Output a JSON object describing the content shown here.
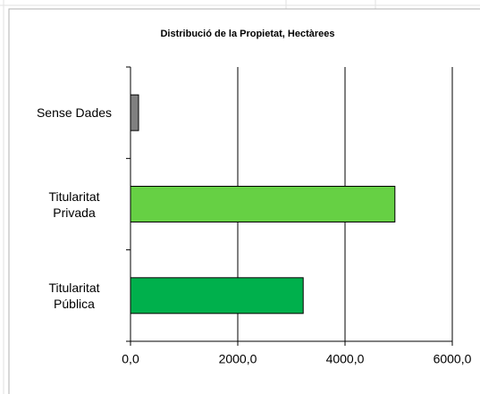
{
  "chart_data": {
    "type": "barh",
    "title": "Distribució de la Propietat, Hectàrees",
    "categories": [
      "Sense Dades",
      "Titularitat Privada",
      "Titularitat Pública"
    ],
    "values": [
      150,
      4930,
      3220
    ],
    "colors": [
      "#808080",
      "#66d044",
      "#00b04c"
    ],
    "xlim": [
      0,
      6000
    ],
    "xticks": [
      {
        "value": 0,
        "label": "0,0"
      },
      {
        "value": 2000,
        "label": "2000,0"
      },
      {
        "value": 4000,
        "label": "4000,0"
      },
      {
        "value": 6000,
        "label": "6000,0"
      }
    ],
    "grid": true
  }
}
